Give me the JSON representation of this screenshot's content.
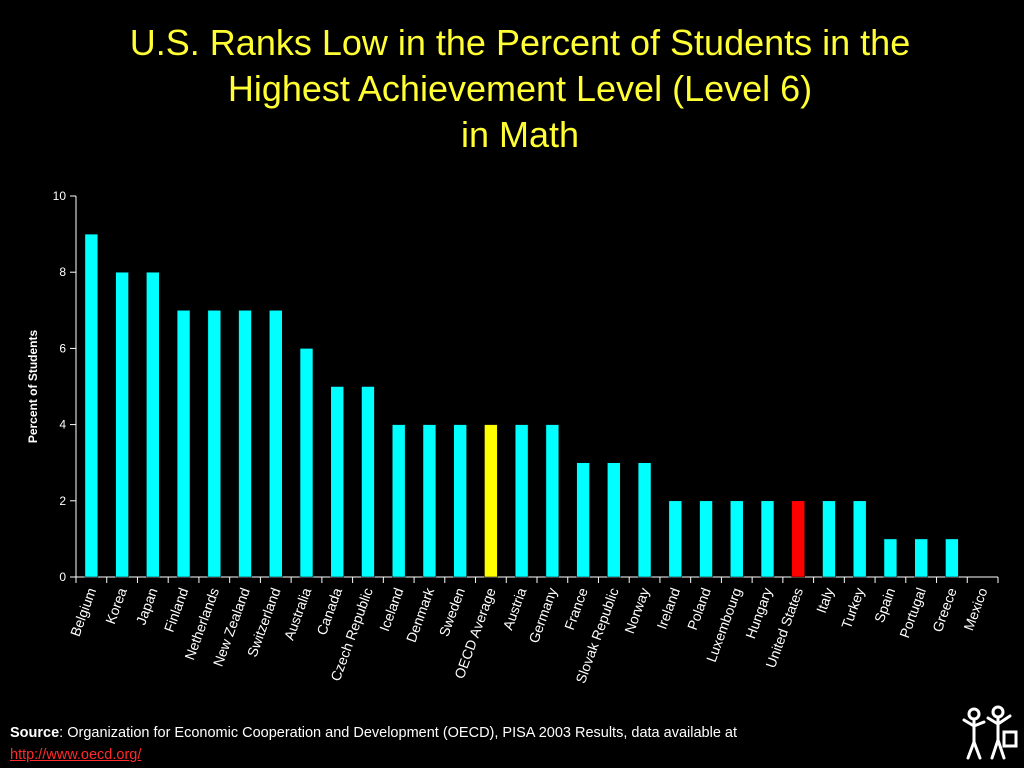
{
  "title_lines": [
    "U.S. Ranks Low in the Percent of Students in the",
    "Highest Achievement Level (Level 6)",
    "in Math"
  ],
  "chart_data": {
    "type": "bar",
    "title": "U.S. Ranks Low in the Percent of Students in the Highest Achievement Level (Level 6) in Math",
    "xlabel": "",
    "ylabel": "Percent of Students",
    "ylim": [
      0,
      10
    ],
    "yticks": [
      0,
      2,
      4,
      6,
      8,
      10
    ],
    "grid": false,
    "categories": [
      "Belgium",
      "Korea",
      "Japan",
      "Finland",
      "Netherlands",
      "New Zealand",
      "Switzerland",
      "Australia",
      "Canada",
      "Czech Republic",
      "Iceland",
      "Denmark",
      "Sweden",
      "OECD Average",
      "Austria",
      "Germany",
      "France",
      "Slovak Republic",
      "Norway",
      "Ireland",
      "Poland",
      "Luxembourg",
      "Hungary",
      "United States",
      "Italy",
      "Turkey",
      "Spain",
      "Portugal",
      "Greece",
      "Mexico"
    ],
    "values": [
      9,
      8,
      8,
      7,
      7,
      7,
      7,
      6,
      5,
      5,
      4,
      4,
      4,
      4,
      4,
      4,
      3,
      3,
      3,
      2,
      2,
      2,
      2,
      2,
      2,
      2,
      1,
      1,
      1,
      0
    ],
    "colors": {
      "default": "#00FFFF",
      "highlight_oecd": "#FFFF00",
      "highlight_us": "#FF0000",
      "axis": "#FFFFFF",
      "title": "#FFFF33"
    },
    "highlights": {
      "OECD Average": "#FFFF00",
      "United States": "#FF0000"
    }
  },
  "source": {
    "label": "Source",
    "text": ": Organization for Economic Cooperation and Development (OECD), PISA 2003 Results, data available at",
    "link": "http://www.oecd.org/"
  },
  "logo_icon": "children-figures-icon"
}
